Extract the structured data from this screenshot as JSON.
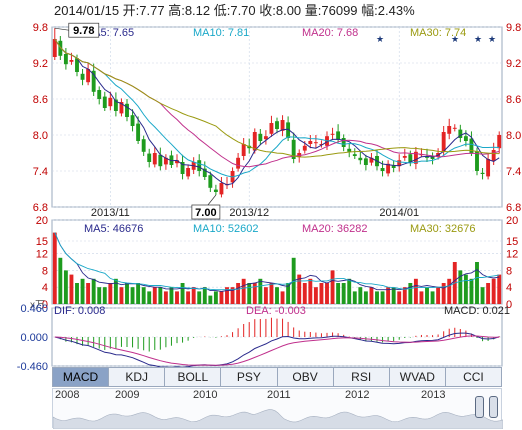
{
  "header": {
    "quote_line": "2014/01/15 开:7.77  高:8.12  低:7.70  收:8.00  量:76099  幅:2.43%"
  },
  "colors": {
    "up": "#e32424",
    "down": "#1e9b1e",
    "ma5": "#2a2a8c",
    "ma10": "#1aa8c8",
    "ma20": "#c0308c",
    "ma30": "#9a9a10",
    "grid": "#c9d5e6"
  },
  "price_panel": {
    "ma_labels": [
      {
        "text": "MA5: 7.65",
        "color": "#2a2a8c"
      },
      {
        "text": "MA10: 7.81",
        "color": "#1aa8c8"
      },
      {
        "text": "MA20: 7.68",
        "color": "#c0308c"
      },
      {
        "text": "MA30: 7.74",
        "color": "#9a9a10"
      }
    ],
    "yticks": [
      "9.8",
      "9.2",
      "8.6",
      "8.0",
      "7.4",
      "6.8"
    ],
    "max_label": "9.78",
    "min_label": "7.00",
    "date_labels": [
      "2013/11",
      "2013/12",
      "2014/01"
    ]
  },
  "volume_panel": {
    "ma_labels": [
      {
        "text": "MA5: 46676",
        "color": "#2a2a8c"
      },
      {
        "text": "MA10: 52602",
        "color": "#1aa8c8"
      },
      {
        "text": "MA20: 36282",
        "color": "#c0308c"
      },
      {
        "text": "MA30: 32676",
        "color": "#9a9a10"
      }
    ],
    "yticks": [
      "20",
      "15",
      "12",
      "8",
      "4",
      "0"
    ],
    "unit": "x万"
  },
  "macd_panel": {
    "labels": [
      {
        "text": "DIF: 0.008",
        "color": "#2a2a8c"
      },
      {
        "text": "DEA: -0.003",
        "color": "#c0308c"
      },
      {
        "text": "MACD: 0.021",
        "color": "#222"
      }
    ],
    "yticks": [
      "0.460",
      "0.000",
      "-0.460"
    ]
  },
  "tabs": [
    "MACD",
    "KDJ",
    "BOLL",
    "PSY",
    "OBV",
    "RSI",
    "WVAD",
    "CCI"
  ],
  "active_tab": "MACD",
  "timeline": {
    "years": [
      "2008",
      "2009",
      "2010",
      "2011",
      "2012",
      "2013"
    ]
  },
  "chart_data": {
    "type": "candlestick",
    "price_range": [
      6.8,
      9.8
    ],
    "start_price": 9.6,
    "closes": [
      9.6,
      9.32,
      9.18,
      9.25,
      9.05,
      8.92,
      9.1,
      8.72,
      8.6,
      8.45,
      8.62,
      8.4,
      8.55,
      8.3,
      8.15,
      7.9,
      7.72,
      7.55,
      7.7,
      7.48,
      7.62,
      7.5,
      7.58,
      7.35,
      7.45,
      7.55,
      7.4,
      7.3,
      7.12,
      7.05,
      7.2,
      7.18,
      7.4,
      7.62,
      7.85,
      7.78,
      8.05,
      7.9,
      7.98,
      8.2,
      8.1,
      8.25,
      7.95,
      7.6,
      7.7,
      7.82,
      7.9,
      7.88,
      7.85,
      7.98,
      8.02,
      7.92,
      7.8,
      7.72,
      7.65,
      7.58,
      7.5,
      7.62,
      7.48,
      7.4,
      7.52,
      7.45,
      7.58,
      7.65,
      7.55,
      7.72,
      7.68,
      7.62,
      7.6,
      7.7,
      8.05,
      8.15,
      8.12,
      7.95,
      7.9,
      7.7,
      7.4,
      7.35,
      7.6,
      7.75,
      8.0
    ],
    "volume_range": [
      0,
      20
    ],
    "volumes": [
      17,
      11,
      8,
      7,
      5,
      6,
      5,
      6,
      4,
      4,
      5,
      6,
      4,
      5,
      4,
      5,
      4,
      3,
      4,
      4,
      3,
      4,
      3,
      5,
      3,
      4,
      3,
      4,
      2,
      3,
      3,
      4,
      4,
      5,
      6,
      5,
      5,
      6,
      4,
      5,
      4,
      3,
      5,
      11,
      7,
      5,
      6,
      4,
      5,
      5,
      8,
      5,
      5,
      6,
      3,
      4,
      3,
      4,
      3,
      3,
      4,
      4,
      3,
      4,
      5,
      6,
      3,
      4,
      3,
      4,
      5,
      6,
      10,
      8,
      7,
      6,
      10,
      4,
      5,
      6,
      7
    ],
    "macd_range": [
      -0.46,
      0.46
    ]
  }
}
